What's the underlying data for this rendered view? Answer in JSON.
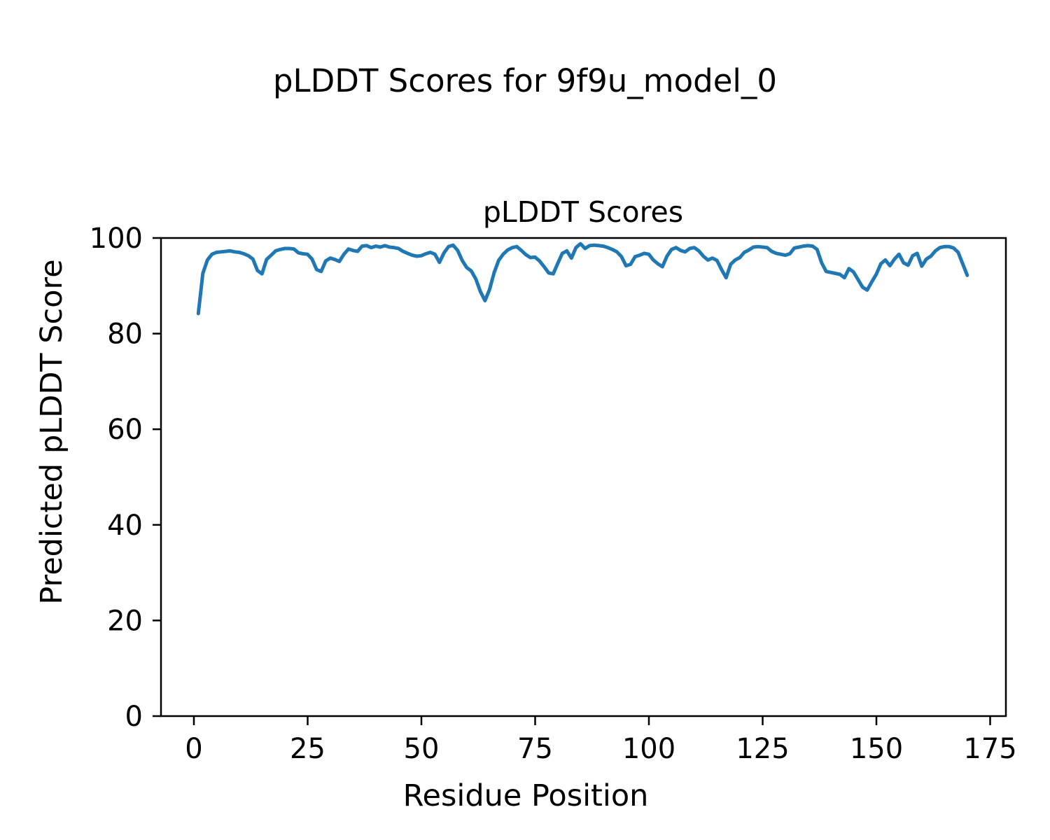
{
  "chart_data": {
    "type": "line",
    "suptitle": "pLDDT Scores for 9f9u_model_0",
    "title": "pLDDT Scores",
    "xlabel": "Residue Position",
    "ylabel": "Predicted pLDDT Score",
    "xlim": [
      -7.2,
      178.5
    ],
    "ylim": [
      0,
      100
    ],
    "xticks": [
      0,
      25,
      50,
      75,
      100,
      125,
      150,
      175
    ],
    "yticks": [
      0,
      20,
      40,
      60,
      80,
      100
    ],
    "grid": false,
    "legend": "none",
    "line_color": "#1f77b4",
    "line_width": 5,
    "series": [
      {
        "name": "pLDDT",
        "x_start": 1,
        "x_step": 1,
        "values": [
          84.2,
          92.6,
          95.4,
          96.6,
          97.0,
          97.1,
          97.2,
          97.3,
          97.1,
          97.0,
          96.7,
          96.3,
          95.6,
          93.2,
          92.5,
          95.5,
          96.4,
          97.3,
          97.6,
          97.8,
          97.8,
          97.7,
          96.9,
          96.7,
          96.6,
          95.6,
          93.4,
          93.0,
          95.2,
          95.8,
          95.5,
          95.1,
          96.6,
          97.7,
          97.4,
          97.2,
          98.3,
          98.4,
          98.0,
          98.3,
          98.1,
          98.4,
          98.1,
          98.0,
          97.8,
          97.2,
          96.8,
          96.4,
          96.2,
          96.3,
          96.7,
          97.0,
          96.6,
          94.9,
          96.9,
          98.2,
          98.5,
          97.4,
          95.3,
          93.8,
          93.1,
          91.4,
          88.8,
          86.9,
          89.2,
          92.7,
          95.3,
          96.6,
          97.5,
          98.0,
          98.2,
          97.4,
          96.5,
          95.9,
          96.0,
          95.2,
          94.0,
          92.7,
          92.5,
          94.7,
          96.8,
          97.3,
          95.8,
          98.0,
          98.8,
          97.8,
          98.4,
          98.5,
          98.4,
          98.3,
          98.0,
          97.6,
          97.1,
          96.1,
          94.2,
          94.5,
          96.1,
          96.4,
          96.8,
          96.6,
          95.4,
          94.6,
          94.0,
          96.2,
          97.6,
          98.0,
          97.4,
          97.1,
          97.8,
          98.0,
          97.3,
          96.2,
          95.4,
          95.8,
          95.3,
          93.4,
          91.7,
          94.5,
          95.4,
          95.9,
          97.0,
          97.5,
          98.1,
          98.2,
          98.1,
          98.0,
          97.2,
          96.8,
          96.6,
          96.4,
          96.7,
          97.9,
          98.1,
          98.3,
          98.4,
          98.3,
          97.6,
          94.8,
          93.0,
          92.8,
          92.6,
          92.4,
          91.7,
          93.6,
          92.9,
          91.3,
          89.7,
          89.1,
          90.8,
          92.4,
          94.6,
          95.4,
          94.2,
          95.6,
          96.6,
          94.8,
          94.3,
          96.3,
          96.8,
          94.1,
          95.6,
          96.2,
          97.3,
          98.0,
          98.2,
          98.2,
          97.9,
          97.0,
          94.6,
          92.2
        ]
      }
    ]
  }
}
